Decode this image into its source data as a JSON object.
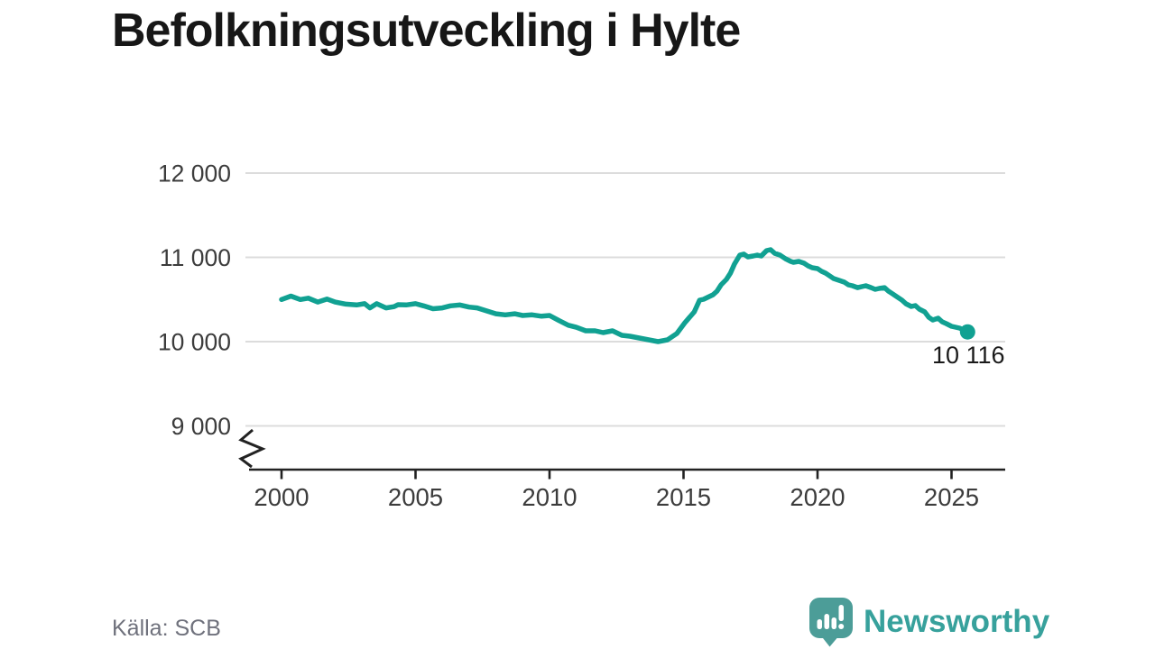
{
  "title": "Befolkningsutveckling i Hylte",
  "source": "Källa: SCB",
  "logo": {
    "text": "Newsworthy",
    "icon": "newsworthy-speech-bubble-bar-chart-icon"
  },
  "colors": {
    "title_text": "#171717",
    "source_text": "#6f717c",
    "logo_icon": "#4c9d98",
    "logo_text": "#37a19c"
  },
  "chart_data": {
    "type": "line",
    "title": "Befolkningsutveckling i Hylte",
    "xlabel": "",
    "ylabel": "",
    "grid": "horizontal",
    "axis_break": true,
    "xlim": [
      1998.6,
      2027.1
    ],
    "ylim_shown": [
      9000,
      12000
    ],
    "x_ticks": [
      2000,
      2005,
      2010,
      2015,
      2020,
      2025
    ],
    "x_tick_labels": [
      "2000",
      "2005",
      "2010",
      "2015",
      "2020",
      "2025"
    ],
    "y_ticks": [
      9000,
      10000,
      11000,
      12000
    ],
    "y_tick_labels": [
      "9 000",
      "10 000",
      "11 000",
      "12 000"
    ],
    "end_label": "10 116",
    "end_value": 10116,
    "colors": {
      "line": "#11a192",
      "grid": "#dcdcdc",
      "axis": "#222222",
      "tick_text": "#3c3c3c",
      "annotation_text": "#1a1a1a"
    },
    "series": [
      {
        "name": "Befolkning",
        "x": [
          2000.0,
          2000.35,
          2000.7,
          2001.0,
          2001.35,
          2001.7,
          2002.0,
          2002.4,
          2002.8,
          2003.1,
          2003.3,
          2003.55,
          2003.9,
          2004.2,
          2004.35,
          2004.65,
          2005.0,
          2005.3,
          2005.65,
          2006.0,
          2006.3,
          2006.65,
          2007.0,
          2007.3,
          2007.65,
          2008.0,
          2008.35,
          2008.7,
          2009.0,
          2009.35,
          2009.7,
          2010.0,
          2010.35,
          2010.7,
          2011.0,
          2011.35,
          2011.7,
          2012.0,
          2012.35,
          2012.7,
          2013.0,
          2013.35,
          2013.7,
          2014.05,
          2014.4,
          2014.75,
          2015.05,
          2015.4,
          2015.6,
          2015.75,
          2016.1,
          2016.25,
          2016.4,
          2016.6,
          2016.75,
          2016.9,
          2017.1,
          2017.25,
          2017.4,
          2017.6,
          2017.75,
          2017.9,
          2018.1,
          2018.25,
          2018.4,
          2018.6,
          2018.8,
          2019.0,
          2019.1,
          2019.3,
          2019.5,
          2019.65,
          2019.8,
          2020.0,
          2020.15,
          2020.3,
          2020.45,
          2020.6,
          2020.8,
          2021.0,
          2021.15,
          2021.3,
          2021.5,
          2021.65,
          2021.8,
          2022.0,
          2022.15,
          2022.3,
          2022.5,
          2022.65,
          2022.8,
          2023.0,
          2023.15,
          2023.3,
          2023.5,
          2023.65,
          2023.8,
          2024.0,
          2024.15,
          2024.3,
          2024.5,
          2024.65,
          2024.8,
          2025.0,
          2025.15,
          2025.3,
          2025.45,
          2025.6
        ],
        "y": [
          10500,
          10540,
          10500,
          10515,
          10470,
          10505,
          10470,
          10445,
          10435,
          10450,
          10400,
          10450,
          10400,
          10415,
          10438,
          10435,
          10450,
          10425,
          10390,
          10400,
          10425,
          10435,
          10410,
          10400,
          10365,
          10330,
          10318,
          10330,
          10310,
          10318,
          10302,
          10310,
          10250,
          10195,
          10170,
          10128,
          10128,
          10107,
          10128,
          10075,
          10064,
          10043,
          10021,
          10000,
          10021,
          10096,
          10225,
          10353,
          10492,
          10503,
          10556,
          10599,
          10674,
          10738,
          10813,
          10920,
          11027,
          11038,
          11005,
          11016,
          11027,
          11016,
          11080,
          11091,
          11048,
          11027,
          10984,
          10952,
          10941,
          10952,
          10930,
          10898,
          10877,
          10866,
          10834,
          10813,
          10781,
          10749,
          10727,
          10706,
          10674,
          10663,
          10641,
          10652,
          10663,
          10641,
          10620,
          10631,
          10641,
          10598,
          10567,
          10524,
          10492,
          10449,
          10417,
          10428,
          10385,
          10353,
          10289,
          10257,
          10278,
          10235,
          10214,
          10182,
          10171,
          10160,
          10139,
          10116
        ]
      }
    ]
  }
}
